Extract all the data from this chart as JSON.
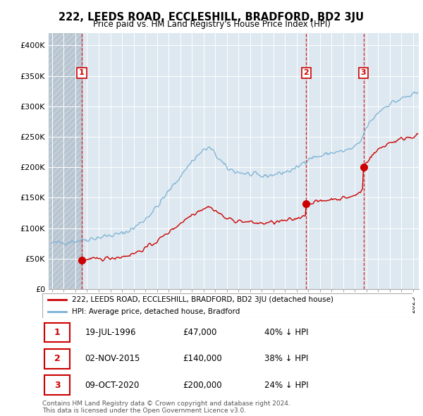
{
  "title": "222, LEEDS ROAD, ECCLESHILL, BRADFORD, BD2 3JU",
  "subtitle": "Price paid vs. HM Land Registry's House Price Index (HPI)",
  "sale_times": [
    1996.542,
    2015.833,
    2020.75
  ],
  "sale_prices": [
    47000,
    140000,
    200000
  ],
  "sale_labels": [
    "1",
    "2",
    "3"
  ],
  "legend_line1": "222, LEEDS ROAD, ECCLESHILL, BRADFORD, BD2 3JU (detached house)",
  "legend_line2": "HPI: Average price, detached house, Bradford",
  "table": [
    {
      "num": "1",
      "date": "19-JUL-1996",
      "price": "£47,000",
      "pct": "40% ↓ HPI"
    },
    {
      "num": "2",
      "date": "02-NOV-2015",
      "price": "£140,000",
      "pct": "38% ↓ HPI"
    },
    {
      "num": "3",
      "date": "09-OCT-2020",
      "price": "£200,000",
      "pct": "24% ↓ HPI"
    }
  ],
  "footer": "Contains HM Land Registry data © Crown copyright and database right 2024.\nThis data is licensed under the Open Government Licence v3.0.",
  "hpi_color": "#7ab0d4",
  "sale_color": "#cc0000",
  "bg_color": "#dde8f0",
  "hatch_color": "#c0ccd8",
  "ylim": [
    0,
    420000
  ],
  "yticks": [
    0,
    50000,
    100000,
    150000,
    200000,
    250000,
    300000,
    350000,
    400000
  ],
  "ytick_labels": [
    "£0",
    "£50K",
    "£100K",
    "£150K",
    "£200K",
    "£250K",
    "£300K",
    "£350K",
    "£400K"
  ],
  "xmin": 1993.7,
  "xmax": 2025.5
}
